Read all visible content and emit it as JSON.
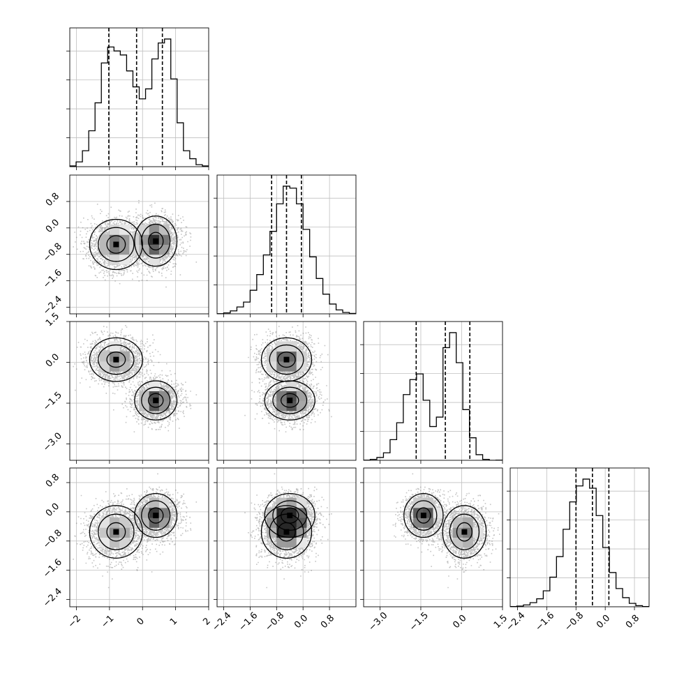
{
  "chart_data": {
    "type": "corner",
    "params": [
      {
        "name": "",
        "range": [
          -2.2,
          2.0
        ],
        "ticks": [
          -2,
          -1,
          0,
          1,
          2
        ],
        "tick_labels": [
          "−2",
          "−1",
          "0",
          "1",
          "2"
        ]
      },
      {
        "name": "",
        "range": [
          -2.6,
          1.6
        ],
        "ticks": [
          -2.4,
          -1.6,
          -0.8,
          0.0,
          0.8
        ],
        "tick_labels": [
          "−2.4",
          "−1.6",
          "−0.8",
          "0.0",
          "0.8"
        ]
      },
      {
        "name": "",
        "range": [
          -3.6,
          1.5
        ],
        "ticks": [
          -3.0,
          -1.5,
          0.0,
          1.5
        ],
        "tick_labels": [
          "−3.0",
          "−1.5",
          "0.0",
          "1.5"
        ]
      },
      {
        "name": "",
        "range": [
          -2.6,
          1.2
        ],
        "ticks": [
          -2.4,
          -1.6,
          -0.8,
          0.0,
          0.8
        ],
        "tick_labels": [
          "−2.4",
          "−1.6",
          "−0.8",
          "0.0",
          "0.8"
        ]
      }
    ],
    "histograms": [
      {
        "quantiles": [
          -1.02,
          -0.18,
          0.6
        ],
        "counts": [
          2,
          12,
          40,
          90,
          160,
          260,
          300,
          290,
          280,
          240,
          200,
          170,
          195,
          270,
          310,
          320,
          220,
          110,
          40,
          20,
          5,
          2
        ]
      },
      {
        "quantiles": [
          -0.95,
          -0.5,
          -0.05
        ],
        "counts": [
          1,
          5,
          15,
          35,
          60,
          120,
          200,
          300,
          420,
          560,
          650,
          640,
          560,
          430,
          290,
          180,
          100,
          50,
          20,
          7,
          2
        ]
      },
      {
        "quantiles": [
          -1.67,
          -0.6,
          0.3
        ],
        "counts": [
          1,
          5,
          15,
          40,
          110,
          200,
          350,
          430,
          460,
          320,
          180,
          230,
          600,
          680,
          520,
          270,
          120,
          30,
          5,
          0,
          1
        ]
      },
      {
        "quantiles": [
          -0.8,
          -0.35,
          0.1
        ],
        "counts": [
          1,
          3,
          8,
          18,
          35,
          70,
          130,
          220,
          340,
          460,
          530,
          560,
          520,
          400,
          260,
          150,
          80,
          40,
          15,
          5,
          1
        ]
      }
    ],
    "components": [
      {
        "weight": 0.5,
        "mean": [
          -0.8,
          -0.5,
          0.1,
          -0.55
        ],
        "sd": [
          0.4,
          0.38,
          0.4,
          0.36
        ]
      },
      {
        "weight": 0.5,
        "mean": [
          0.4,
          -0.4,
          -1.4,
          -0.1
        ],
        "sd": [
          0.32,
          0.38,
          0.36,
          0.3
        ]
      }
    ],
    "grid": true,
    "colors": {
      "line": "#000000",
      "points": "#555555",
      "grid": "#bfbfbf"
    }
  }
}
